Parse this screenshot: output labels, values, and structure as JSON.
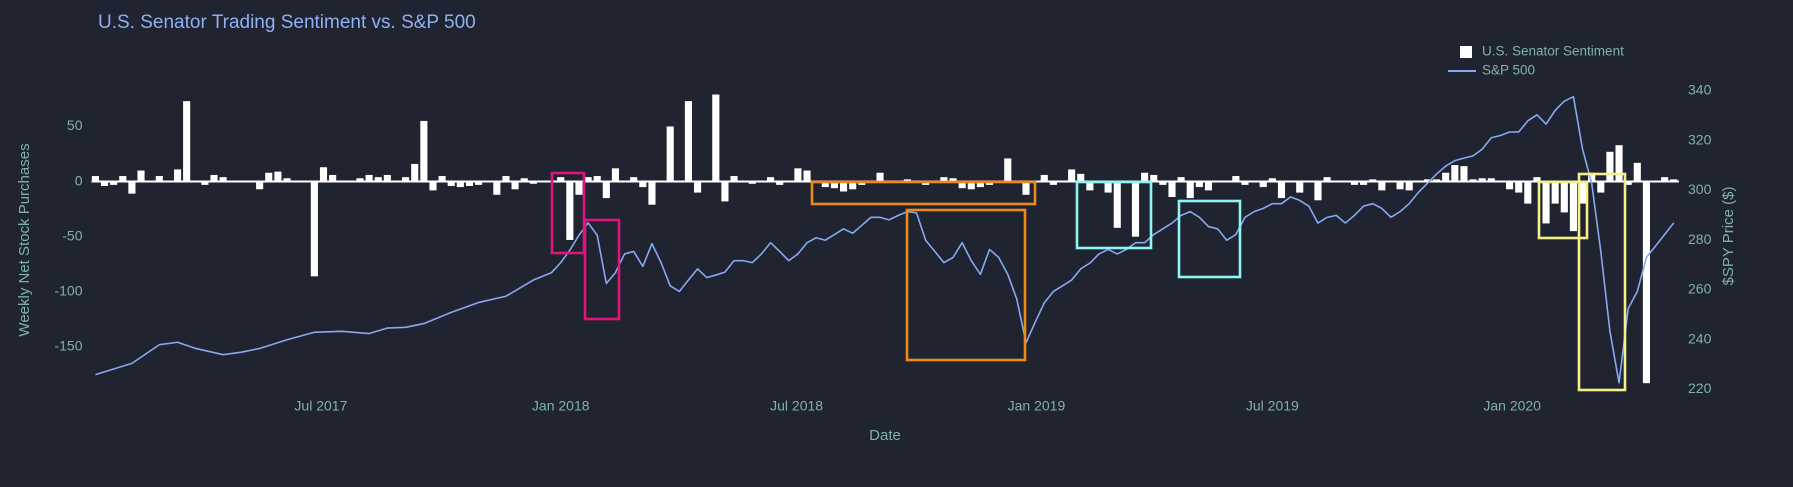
{
  "chart_data": {
    "type": "combo",
    "title": "U.S. Senator Trading Sentiment vs. S&P 500",
    "xlabel": "Date",
    "ylabel": "Weekly Net Stock Purchases",
    "y2label": "$SPY Price ($)",
    "legend": "top-right",
    "grid": false,
    "zeroline": true,
    "xlim": [
      "2017-01-06",
      "2020-05-08"
    ],
    "xticks": [
      {
        "value": "2017-07-01",
        "label": "Jul 2017"
      },
      {
        "value": "2018-01-01",
        "label": "Jan 2018"
      },
      {
        "value": "2018-07-01",
        "label": "Jul 2018"
      },
      {
        "value": "2019-01-01",
        "label": "Jan 2019"
      },
      {
        "value": "2019-07-01",
        "label": "Jul 2019"
      },
      {
        "value": "2020-01-01",
        "label": "Jan 2020"
      }
    ],
    "ylim": [
      -191,
      89
    ],
    "yticks": [
      -150,
      -100,
      -50,
      0,
      50
    ],
    "y2lim": [
      219,
      343
    ],
    "y2ticks": [
      220,
      240,
      260,
      280,
      300,
      320,
      340
    ],
    "series": [
      {
        "name": "U.S. Senator Sentiment",
        "type": "bar",
        "color": "#ffffff",
        "x": [
          "2017-01-09",
          "2017-01-16",
          "2017-01-23",
          "2017-01-30",
          "2017-02-06",
          "2017-02-13",
          "2017-02-27",
          "2017-03-13",
          "2017-03-20",
          "2017-04-03",
          "2017-04-10",
          "2017-04-17",
          "2017-05-15",
          "2017-05-22",
          "2017-05-29",
          "2017-06-05",
          "2017-06-26",
          "2017-07-03",
          "2017-07-10",
          "2017-07-31",
          "2017-08-07",
          "2017-08-14",
          "2017-08-21",
          "2017-09-04",
          "2017-09-11",
          "2017-09-18",
          "2017-09-25",
          "2017-10-02",
          "2017-10-09",
          "2017-10-16",
          "2017-10-23",
          "2017-10-30",
          "2017-11-13",
          "2017-11-20",
          "2017-11-27",
          "2017-12-04",
          "2017-12-11",
          "2018-01-01",
          "2018-01-08",
          "2018-01-15",
          "2018-01-22",
          "2018-01-29",
          "2018-02-05",
          "2018-02-12",
          "2018-02-26",
          "2018-03-05",
          "2018-03-12",
          "2018-03-26",
          "2018-04-09",
          "2018-04-16",
          "2018-04-30",
          "2018-05-07",
          "2018-05-14",
          "2018-05-28",
          "2018-06-11",
          "2018-06-18",
          "2018-07-02",
          "2018-07-09",
          "2018-07-23",
          "2018-07-30",
          "2018-08-06",
          "2018-08-13",
          "2018-08-20",
          "2018-09-03",
          "2018-09-24",
          "2018-10-08",
          "2018-10-22",
          "2018-10-29",
          "2018-11-05",
          "2018-11-12",
          "2018-11-19",
          "2018-11-26",
          "2018-12-10",
          "2018-12-24",
          "2019-01-07",
          "2019-01-14",
          "2019-01-28",
          "2019-02-04",
          "2019-02-11",
          "2019-02-25",
          "2019-03-04",
          "2019-03-18",
          "2019-03-25",
          "2019-04-01",
          "2019-04-08",
          "2019-04-15",
          "2019-04-22",
          "2019-04-29",
          "2019-05-06",
          "2019-05-13",
          "2019-06-03",
          "2019-06-10",
          "2019-06-24",
          "2019-07-01",
          "2019-07-08",
          "2019-07-22",
          "2019-08-05",
          "2019-08-12",
          "2019-09-02",
          "2019-09-09",
          "2019-09-16",
          "2019-09-23",
          "2019-10-07",
          "2019-10-14",
          "2019-10-28",
          "2019-11-04",
          "2019-11-11",
          "2019-11-18",
          "2019-11-25",
          "2019-12-02",
          "2019-12-09",
          "2019-12-16",
          "2019-12-30",
          "2020-01-06",
          "2020-01-13",
          "2020-01-20",
          "2020-01-27",
          "2020-02-03",
          "2020-02-10",
          "2020-02-17",
          "2020-02-24",
          "2020-03-02",
          "2020-03-09",
          "2020-03-16",
          "2020-03-23",
          "2020-03-30",
          "2020-04-06",
          "2020-04-13",
          "2020-04-27",
          "2020-05-04"
        ],
        "values": [
          5,
          -4,
          -3,
          5,
          -11,
          10,
          5,
          11,
          73,
          -3,
          6,
          4,
          -7,
          8,
          9,
          3,
          -86,
          13,
          6,
          3,
          6,
          4,
          6,
          4,
          16,
          55,
          -8,
          5,
          -4,
          -5,
          -4,
          -3,
          -12,
          5,
          -7,
          3,
          -2,
          4,
          -53,
          -12,
          4,
          5,
          -15,
          12,
          4,
          -5,
          -21,
          50,
          73,
          -10,
          79,
          -18,
          5,
          -2,
          4,
          -3,
          12,
          10,
          -5,
          -6,
          -9,
          -7,
          -3,
          8,
          2,
          -3,
          4,
          3,
          -6,
          -7,
          -5,
          -3,
          21,
          -12,
          6,
          -3,
          11,
          7,
          -8,
          -10,
          -42,
          -50,
          8,
          6,
          -3,
          -14,
          4,
          -15,
          -5,
          -8,
          5,
          -3,
          -5,
          3,
          -15,
          -10,
          -17,
          4,
          -3,
          -3,
          2,
          -8,
          -7,
          -8,
          2,
          2,
          8,
          15,
          14,
          2,
          3,
          3,
          -7,
          -10,
          -20,
          4,
          -38,
          -20,
          -28,
          -45,
          -20,
          8,
          -10,
          27,
          33,
          -3,
          17,
          -183,
          4,
          2
        ]
      },
      {
        "name": "S&P 500",
        "type": "line",
        "axis": "y2",
        "color": "#86a9f0",
        "x": [
          "2017-01-09",
          "2017-02-06",
          "2017-02-27",
          "2017-03-13",
          "2017-03-27",
          "2017-04-17",
          "2017-05-01",
          "2017-05-15",
          "2017-06-05",
          "2017-06-26",
          "2017-07-17",
          "2017-08-07",
          "2017-08-21",
          "2017-09-04",
          "2017-09-18",
          "2017-10-09",
          "2017-10-30",
          "2017-11-20",
          "2017-12-11",
          "2017-12-25",
          "2018-01-01",
          "2018-01-08",
          "2018-01-15",
          "2018-01-22",
          "2018-01-29",
          "2018-02-05",
          "2018-02-12",
          "2018-02-19",
          "2018-02-26",
          "2018-03-05",
          "2018-03-12",
          "2018-03-19",
          "2018-03-26",
          "2018-04-02",
          "2018-04-09",
          "2018-04-16",
          "2018-04-23",
          "2018-04-30",
          "2018-05-07",
          "2018-05-14",
          "2018-05-21",
          "2018-05-28",
          "2018-06-04",
          "2018-06-11",
          "2018-06-18",
          "2018-06-25",
          "2018-07-02",
          "2018-07-09",
          "2018-07-16",
          "2018-07-23",
          "2018-07-30",
          "2018-08-06",
          "2018-08-13",
          "2018-08-20",
          "2018-08-27",
          "2018-09-03",
          "2018-09-10",
          "2018-09-17",
          "2018-09-24",
          "2018-10-01",
          "2018-10-08",
          "2018-10-15",
          "2018-10-22",
          "2018-10-29",
          "2018-11-05",
          "2018-11-12",
          "2018-11-19",
          "2018-11-26",
          "2018-12-03",
          "2018-12-10",
          "2018-12-17",
          "2018-12-24",
          "2018-12-31",
          "2019-01-07",
          "2019-01-14",
          "2019-01-21",
          "2019-01-28",
          "2019-02-04",
          "2019-02-11",
          "2019-02-18",
          "2019-02-25",
          "2019-03-04",
          "2019-03-11",
          "2019-03-18",
          "2019-03-25",
          "2019-04-01",
          "2019-04-08",
          "2019-04-15",
          "2019-04-22",
          "2019-04-29",
          "2019-05-06",
          "2019-05-13",
          "2019-05-20",
          "2019-05-27",
          "2019-06-03",
          "2019-06-10",
          "2019-06-17",
          "2019-06-24",
          "2019-07-01",
          "2019-07-08",
          "2019-07-15",
          "2019-07-22",
          "2019-07-29",
          "2019-08-05",
          "2019-08-12",
          "2019-08-19",
          "2019-08-26",
          "2019-09-02",
          "2019-09-09",
          "2019-09-16",
          "2019-09-23",
          "2019-09-30",
          "2019-10-07",
          "2019-10-14",
          "2019-10-21",
          "2019-10-28",
          "2019-11-04",
          "2019-11-11",
          "2019-11-18",
          "2019-11-25",
          "2019-12-02",
          "2019-12-09",
          "2019-12-16",
          "2019-12-23",
          "2019-12-30",
          "2020-01-06",
          "2020-01-13",
          "2020-01-20",
          "2020-01-27",
          "2020-02-03",
          "2020-02-10",
          "2020-02-17",
          "2020-02-24",
          "2020-03-02",
          "2020-03-09",
          "2020-03-16",
          "2020-03-23",
          "2020-03-30",
          "2020-04-06",
          "2020-04-13",
          "2020-04-20",
          "2020-04-27",
          "2020-05-04"
        ],
        "values": [
          226,
          230.5,
          238,
          239,
          236.5,
          234,
          235,
          236.5,
          240,
          243,
          243.4,
          242.5,
          244.7,
          245,
          246.5,
          251,
          255,
          257.5,
          264,
          267,
          271,
          276,
          282,
          287,
          282,
          262.6,
          267,
          274.5,
          275.5,
          269.5,
          278.6,
          271,
          261.7,
          259.4,
          264,
          268.5,
          265,
          266,
          267.2,
          271.8,
          271.8,
          271,
          274.5,
          279,
          275.5,
          271.8,
          274.5,
          279,
          281,
          280,
          282.3,
          284.6,
          282.8,
          286,
          289.2,
          289.2,
          288.2,
          290,
          291.5,
          291,
          280,
          275.5,
          271,
          273.1,
          279,
          271.8,
          266.3,
          276.3,
          273.1,
          266.3,
          256.2,
          238.8,
          247,
          254.8,
          259.4,
          261.7,
          264,
          268.5,
          270.8,
          274.5,
          276.3,
          274.5,
          276.3,
          279,
          279,
          282.3,
          284.6,
          286.9,
          290,
          291.5,
          289.2,
          285.5,
          284.6,
          280,
          282.3,
          289.2,
          291.5,
          292.8,
          294.7,
          294.7,
          297.4,
          296,
          293.7,
          286.9,
          289.2,
          290,
          286.9,
          290,
          293.7,
          294.7,
          292.8,
          289.2,
          291.5,
          294.7,
          299.2,
          302.9,
          306.6,
          309.8,
          312,
          313,
          313.9,
          316.6,
          321.2,
          322.1,
          323.5,
          323.5,
          328,
          330.4,
          326.7,
          332.2,
          335.9,
          337.7,
          316.6,
          302.9,
          275.5,
          243.4,
          222.7,
          252.5,
          259.4,
          273.1,
          277.7,
          282.3,
          287
        ]
      }
    ]
  }
}
